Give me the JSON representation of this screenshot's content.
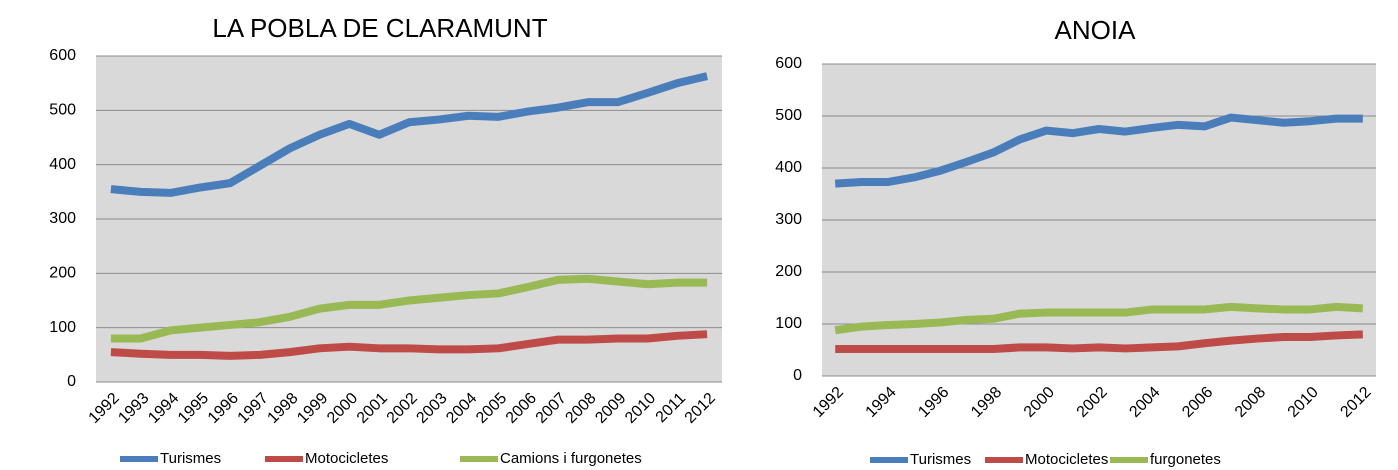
{
  "chart_data": [
    {
      "type": "line",
      "title": "LA POBLA DE CLARAMUNT",
      "categories": [
        "1992",
        "1993",
        "1994",
        "1995",
        "1996",
        "1997",
        "1998",
        "1999",
        "2000",
        "2001",
        "2002",
        "2003",
        "2004",
        "2005",
        "2006",
        "2007",
        "2008",
        "2009",
        "2010",
        "2011",
        "2012"
      ],
      "series": [
        {
          "name": "Turismes",
          "color": "#4a7ebb",
          "values": [
            355,
            350,
            348,
            358,
            366,
            398,
            430,
            455,
            475,
            455,
            478,
            483,
            490,
            488,
            498,
            505,
            515,
            515,
            532,
            550,
            563
          ]
        },
        {
          "name": "Motocicletes",
          "color": "#be4b48",
          "values": [
            55,
            52,
            50,
            50,
            48,
            50,
            55,
            62,
            65,
            62,
            62,
            60,
            60,
            62,
            70,
            78,
            78,
            80,
            80,
            85,
            88
          ]
        },
        {
          "name": "Camions i furgonetes",
          "color": "#98b954",
          "values": [
            80,
            80,
            95,
            100,
            105,
            110,
            120,
            135,
            142,
            142,
            150,
            155,
            160,
            163,
            175,
            188,
            190,
            185,
            180,
            183,
            183
          ]
        }
      ],
      "ylim": [
        0,
        600
      ],
      "yticks": [
        0,
        100,
        200,
        300,
        400,
        500,
        600
      ],
      "grid": true,
      "legend": "bottom"
    },
    {
      "type": "line",
      "title": "ANOIA",
      "categories": [
        "1992",
        null,
        "1994",
        null,
        "1996",
        null,
        "1998",
        null,
        "2000",
        null,
        "2002",
        null,
        "2004",
        null,
        "2006",
        null,
        "2008",
        null,
        "2010",
        null,
        "2012"
      ],
      "series": [
        {
          "name": "Turismes",
          "color": "#4a7ebb",
          "values": [
            370,
            373,
            373,
            382,
            395,
            412,
            430,
            455,
            472,
            467,
            475,
            470,
            477,
            483,
            480,
            497,
            492,
            487,
            490,
            495,
            495
          ]
        },
        {
          "name": "Motocicletes",
          "color": "#be4b48",
          "values": [
            52,
            52,
            52,
            52,
            52,
            52,
            52,
            55,
            55,
            53,
            55,
            53,
            55,
            57,
            63,
            68,
            72,
            75,
            75,
            78,
            80
          ]
        },
        {
          "name": "furgonetes",
          "color": "#98b954",
          "values": [
            88,
            95,
            98,
            100,
            103,
            108,
            110,
            120,
            122,
            122,
            122,
            122,
            128,
            128,
            128,
            133,
            130,
            128,
            128,
            133,
            130
          ]
        }
      ],
      "ylim": [
        0,
        600
      ],
      "yticks": [
        0,
        100,
        200,
        300,
        400,
        500,
        600
      ],
      "grid": true,
      "legend": "bottom"
    }
  ]
}
